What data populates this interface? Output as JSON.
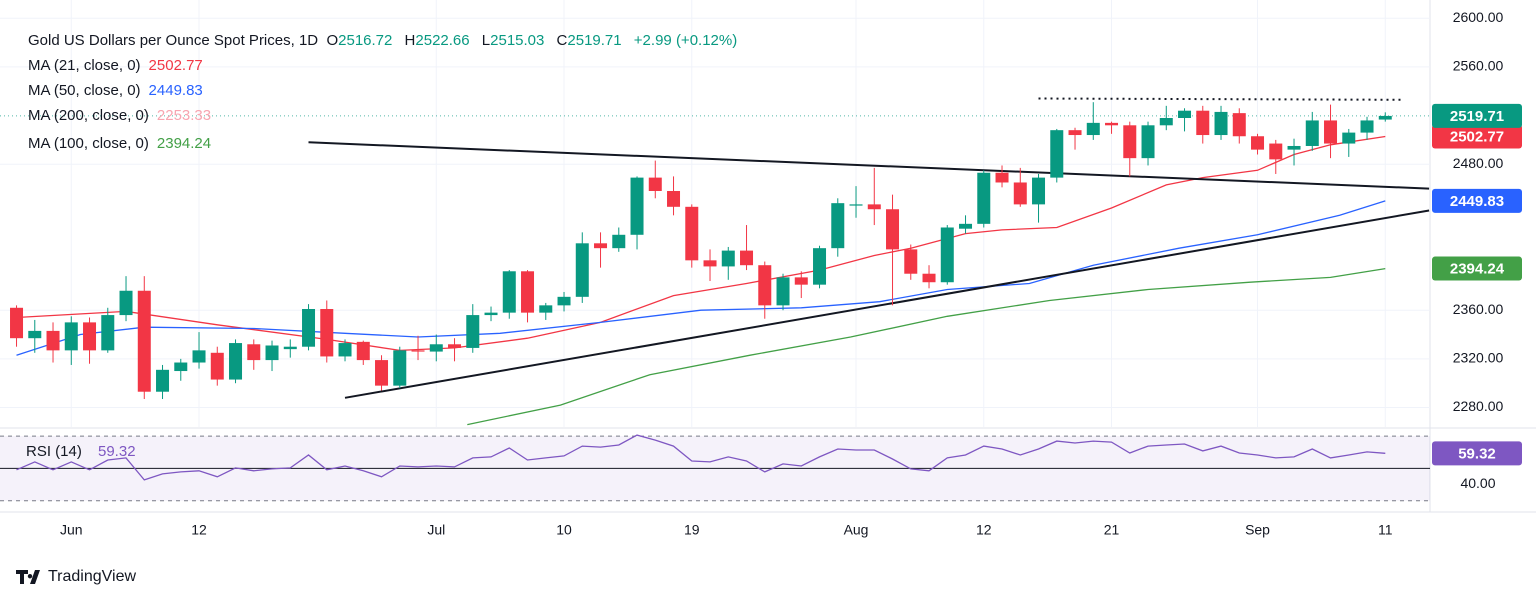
{
  "chart_data": {
    "type": "candlestick",
    "title": "Gold US Dollars per Ounce Spot Prices, 1D",
    "header": {
      "open": "O",
      "high": "H",
      "low": "L",
      "close": "C",
      "change": {
        "value": 2.99,
        "label": "+2.99"
      },
      "change_pct": {
        "value": 0.12,
        "label": "(+0.12%)"
      }
    },
    "categories": [
      null,
      null,
      null,
      "Jun",
      null,
      null,
      null,
      null,
      null,
      null,
      "12",
      null,
      null,
      null,
      null,
      null,
      null,
      null,
      null,
      null,
      null,
      null,
      null,
      "Jul",
      null,
      null,
      null,
      null,
      null,
      null,
      "10",
      null,
      null,
      null,
      null,
      null,
      null,
      "19",
      null,
      null,
      null,
      null,
      null,
      null,
      null,
      null,
      "Aug",
      null,
      null,
      null,
      null,
      null,
      null,
      "12",
      null,
      null,
      null,
      null,
      null,
      null,
      "21",
      null,
      null,
      null,
      null,
      null,
      null,
      null,
      "Sep",
      null,
      null,
      null,
      null,
      null,
      null,
      "11"
    ],
    "open": [
      2362,
      2337,
      2343,
      2327,
      2350,
      2327,
      2356,
      2376,
      2293,
      2310,
      2317,
      2325,
      2303,
      2332,
      2319,
      2328,
      2330,
      2361,
      2322,
      2334,
      2319,
      2298,
      2327,
      2326,
      2332,
      2329,
      2356,
      2358,
      2392,
      2358,
      2364,
      2371,
      2415,
      2411,
      2422,
      2469,
      2458,
      2445,
      2401,
      2396,
      2409,
      2397,
      2364,
      2387,
      2381,
      2411,
      2446,
      2447,
      2443,
      2410,
      2390,
      2383,
      2427,
      2431,
      2473,
      2465,
      2447,
      2469,
      2508,
      2504,
      2514,
      2512,
      2485,
      2512,
      2518,
      2524,
      2504,
      2522,
      2503,
      2497,
      2492,
      2495,
      2516,
      2497,
      2506,
      2516.72
    ],
    "high": [
      2364,
      2352,
      2350,
      2355,
      2354,
      2362,
      2388,
      2388,
      2315,
      2320,
      2342,
      2330,
      2336,
      2336,
      2335,
      2336,
      2365,
      2368,
      2336,
      2335,
      2323,
      2330,
      2339,
      2340,
      2337,
      2365,
      2363,
      2393,
      2393,
      2366,
      2375,
      2424,
      2424,
      2428,
      2470,
      2483,
      2470,
      2447,
      2410,
      2412,
      2430,
      2400,
      2390,
      2392,
      2413,
      2452,
      2462,
      2477,
      2455,
      2414,
      2397,
      2430,
      2438,
      2475,
      2479,
      2477,
      2472,
      2509,
      2510,
      2531,
      2515,
      2515,
      2515,
      2528,
      2526,
      2528,
      2528,
      2526,
      2505,
      2500,
      2501,
      2523,
      2529,
      2509,
      2519,
      2522.66
    ],
    "low": [
      2330,
      2325,
      2317,
      2315,
      2316,
      2325,
      2351,
      2287,
      2287,
      2302,
      2312,
      2298,
      2300,
      2311,
      2310,
      2321,
      2327,
      2317,
      2318,
      2315,
      2294,
      2296,
      2319,
      2318,
      2318,
      2325,
      2351,
      2353,
      2350,
      2352,
      2359,
      2366,
      2395,
      2408,
      2410,
      2452,
      2438,
      2395,
      2384,
      2385,
      2393,
      2353,
      2360,
      2370,
      2378,
      2404,
      2436,
      2430,
      2364,
      2385,
      2378,
      2381,
      2423,
      2428,
      2461,
      2445,
      2432,
      2465,
      2492,
      2500,
      2505,
      2470,
      2479,
      2508,
      2507,
      2497,
      2500,
      2497,
      2488,
      2472,
      2479,
      2491,
      2485,
      2486,
      2500,
      2515.03
    ],
    "close": [
      2337,
      2343,
      2327,
      2350,
      2327,
      2356,
      2376,
      2293,
      2311,
      2317,
      2327,
      2303,
      2333,
      2319,
      2331,
      2330,
      2361,
      2322,
      2333,
      2319,
      2298,
      2327,
      2326,
      2332,
      2329,
      2356,
      2358,
      2392,
      2358,
      2364,
      2371,
      2415,
      2411,
      2422,
      2469,
      2458,
      2445,
      2401,
      2396,
      2409,
      2397,
      2364,
      2387,
      2381,
      2411,
      2448,
      2447,
      2443,
      2410,
      2390,
      2383,
      2428,
      2431,
      2473,
      2465,
      2447,
      2469,
      2508,
      2504,
      2514,
      2512,
      2485,
      2512,
      2518,
      2524,
      2504,
      2523,
      2503,
      2492,
      2484,
      2495,
      2516,
      2497,
      2506,
      2516,
      2519.71
    ],
    "up_color": "#089981",
    "down_color": "#f23645",
    "ylim": [
      2264,
      2615
    ],
    "yticks": [
      {
        "value": 2280,
        "label": "2280.00"
      },
      {
        "value": 2320,
        "label": "2320.00"
      },
      {
        "value": 2360,
        "label": "2360.00"
      },
      {
        "value": 2480,
        "label": "2480.00"
      },
      {
        "value": 2560,
        "label": "2560.00"
      },
      {
        "value": 2600,
        "label": "2600.00"
      }
    ],
    "indicators": [
      {
        "name": "MA (21, close, 0)",
        "value": 2502.77,
        "color": "#f23645",
        "x": [
          0,
          6,
          11,
          17,
          21,
          24,
          28,
          32,
          36,
          40,
          44,
          47,
          49,
          52,
          54,
          57,
          60,
          63,
          65,
          68,
          70,
          72,
          75
        ],
        "values": [
          2354,
          2359,
          2348,
          2336,
          2327,
          2329,
          2337,
          2350,
          2372,
          2382,
          2393,
          2405,
          2411,
          2423,
          2426,
          2428,
          2444,
          2463,
          2469,
          2475,
          2488,
          2496,
          2502.77
        ]
      },
      {
        "name": "MA (50, close, 0)",
        "value": 2449.83,
        "color": "#2962ff",
        "x": [
          0,
          3.5,
          7,
          13,
          18,
          22,
          26.5,
          32,
          37.5,
          43,
          47.3,
          51,
          55.5,
          59,
          63.7,
          68,
          72.5,
          75
        ],
        "values": [
          2323,
          2340,
          2346,
          2345,
          2341,
          2338,
          2341,
          2350,
          2360,
          2362,
          2367,
          2377,
          2382,
          2397,
          2411,
          2422,
          2438,
          2449.83
        ]
      },
      {
        "name": "MA (200, close, 0)",
        "value": 2253.33,
        "color": "#f7a5b0",
        "x": [],
        "values": []
      },
      {
        "name": "MA (100, close, 0)",
        "value": 2394.24,
        "color": "#43a047",
        "x": [
          24.7,
          29.8,
          34.7,
          40.2,
          45.7,
          51,
          56.6,
          62,
          67.6,
          72,
          75
        ],
        "values": [
          2266,
          2282,
          2307,
          2323,
          2338,
          2355,
          2368,
          2377,
          2383,
          2387,
          2394.24
        ]
      }
    ],
    "trendlines": [
      {
        "x": [
          16,
          77.4
        ],
        "values": [
          2498,
          2460
        ],
        "style": "solid"
      },
      {
        "x": [
          18,
          77.4
        ],
        "values": [
          2288,
          2442
        ],
        "style": "solid"
      },
      {
        "x": [
          56,
          76
        ],
        "values": [
          2534,
          2533
        ],
        "style": "dotted"
      }
    ],
    "rsi": {
      "name": "RSI (14)",
      "value": 59.32,
      "color": "#7e57c2",
      "ylim": [
        23,
        75
      ],
      "yticks": [
        {
          "value": 40,
          "label": "40.00"
        }
      ],
      "levels": [
        30,
        50,
        70
      ],
      "values": [
        49.1,
        54.0,
        49.1,
        54.0,
        49.1,
        55.2,
        56.5,
        42.9,
        46.6,
        47.8,
        48.5,
        44.8,
        50.3,
        48.5,
        49.7,
        50.3,
        58.3,
        49.1,
        51.5,
        48.5,
        44.8,
        51.5,
        50.9,
        51.5,
        50.9,
        56.5,
        57.1,
        62.6,
        55.2,
        56.5,
        57.7,
        63.8,
        63.2,
        64.5,
        70.6,
        67.5,
        63.8,
        54.6,
        54.0,
        57.1,
        54.6,
        47.8,
        52.8,
        51.5,
        57.1,
        62.0,
        61.4,
        61.4,
        55.8,
        49.7,
        48.5,
        56.5,
        58.3,
        63.8,
        62.0,
        58.3,
        62.0,
        66.9,
        65.7,
        66.9,
        66.3,
        59.5,
        63.8,
        64.5,
        65.1,
        60.8,
        63.8,
        59.5,
        58.3,
        56.5,
        57.1,
        62.0,
        56.5,
        58.3,
        60.2,
        59.32
      ]
    }
  },
  "brand": "TradingView"
}
